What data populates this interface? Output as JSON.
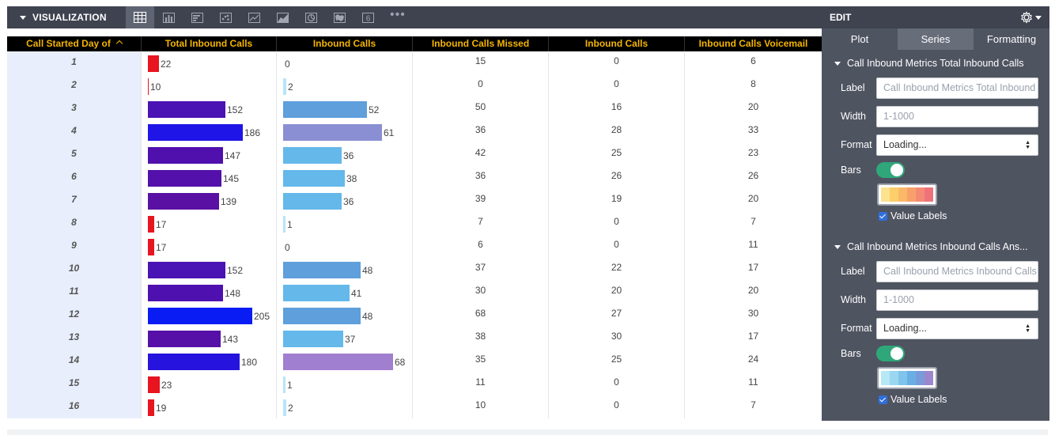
{
  "toolbar": {
    "title": "VISUALIZATION",
    "icons": [
      "table-icon",
      "bar-chart-icon",
      "column-chart-icon",
      "scatter-icon",
      "line-icon",
      "area-icon",
      "pie-icon",
      "map-icon",
      "single-value-icon"
    ],
    "single_value_digit": "6",
    "more": "•••"
  },
  "table": {
    "headers": [
      "Call Started Day of",
      "Total Inbound Calls",
      "Inbound Calls",
      "Inbound Calls Missed",
      "Inbound Calls",
      "Inbound Calls Voicemail"
    ],
    "rows": [
      {
        "day": "1",
        "total": 22,
        "total_color": "#e8141f",
        "inb": 0,
        "inb_color": "#b9e4f7",
        "missed": "15",
        "inb2": "0",
        "vm": "6"
      },
      {
        "day": "2",
        "total": 10,
        "total_color": "#e8141f",
        "inb": 2,
        "inb_color": "#b9e4f7",
        "missed": "0",
        "inb2": "0",
        "vm": "8"
      },
      {
        "day": "3",
        "total": 152,
        "total_color": "#4a13b3",
        "inb": 52,
        "inb_color": "#5e9fdc",
        "missed": "50",
        "inb2": "16",
        "vm": "20"
      },
      {
        "day": "4",
        "total": 186,
        "total_color": "#1f15e6",
        "inb": 61,
        "inb_color": "#8a8fd4",
        "missed": "36",
        "inb2": "28",
        "vm": "33"
      },
      {
        "day": "5",
        "total": 147,
        "total_color": "#5010ad",
        "inb": 36,
        "inb_color": "#64b8ea",
        "missed": "42",
        "inb2": "25",
        "vm": "23"
      },
      {
        "day": "6",
        "total": 145,
        "total_color": "#5310aa",
        "inb": 38,
        "inb_color": "#64b8ea",
        "missed": "36",
        "inb2": "26",
        "vm": "26"
      },
      {
        "day": "7",
        "total": 139,
        "total_color": "#5a10a2",
        "inb": 36,
        "inb_color": "#64b8ea",
        "missed": "39",
        "inb2": "19",
        "vm": "20"
      },
      {
        "day": "8",
        "total": 17,
        "total_color": "#e8141f",
        "inb": 1,
        "inb_color": "#b9e4f7",
        "missed": "7",
        "inb2": "0",
        "vm": "7"
      },
      {
        "day": "9",
        "total": 17,
        "total_color": "#e8141f",
        "inb": 0,
        "inb_color": "#b9e4f7",
        "missed": "6",
        "inb2": "0",
        "vm": "11"
      },
      {
        "day": "10",
        "total": 152,
        "total_color": "#4a13b3",
        "inb": 48,
        "inb_color": "#5e9fdc",
        "missed": "37",
        "inb2": "22",
        "vm": "17"
      },
      {
        "day": "11",
        "total": 148,
        "total_color": "#4e11b0",
        "inb": 41,
        "inb_color": "#64b8ea",
        "missed": "30",
        "inb2": "20",
        "vm": "20"
      },
      {
        "day": "12",
        "total": 205,
        "total_color": "#0a1cf4",
        "inb": 48,
        "inb_color": "#5e9fdc",
        "missed": "68",
        "inb2": "27",
        "vm": "30"
      },
      {
        "day": "13",
        "total": 143,
        "total_color": "#5610a7",
        "inb": 37,
        "inb_color": "#64b8ea",
        "missed": "38",
        "inb2": "30",
        "vm": "17"
      },
      {
        "day": "14",
        "total": 180,
        "total_color": "#2614de",
        "inb": 68,
        "inb_color": "#a17fd0",
        "missed": "35",
        "inb2": "25",
        "vm": "24"
      },
      {
        "day": "15",
        "total": 23,
        "total_color": "#e8141f",
        "inb": 1,
        "inb_color": "#b9e4f7",
        "missed": "11",
        "inb2": "0",
        "vm": "11"
      },
      {
        "day": "16",
        "total": 19,
        "total_color": "#e8141f",
        "inb": 2,
        "inb_color": "#b9e4f7",
        "missed": "10",
        "inb2": "0",
        "vm": "7"
      }
    ]
  },
  "edit_panel": {
    "title": "EDIT",
    "tabs": [
      "Plot",
      "Series",
      "Formatting"
    ],
    "active_tab": "Series",
    "sections": [
      {
        "title": "Call Inbound Metrics Total Inbound Calls",
        "label_label": "Label",
        "label_placeholder": "Call Inbound Metrics Total Inbound Calls",
        "width_label": "Width",
        "width_placeholder": "1-1000",
        "format_label": "Format",
        "format_value": "Loading...",
        "bars_label": "Bars",
        "bars_on": true,
        "palette": [
          "#fde28f",
          "#fccf6a",
          "#fbb968",
          "#f8a06a",
          "#f48a74",
          "#ef727b"
        ],
        "value_labels": "Value Labels"
      },
      {
        "title": "Call Inbound Metrics Inbound Calls Ans...",
        "label_label": "Label",
        "label_placeholder": "Call Inbound Metrics Inbound Calls Answered",
        "width_label": "Width",
        "width_placeholder": "1-1000",
        "format_label": "Format",
        "format_value": "Loading...",
        "bars_label": "Bars",
        "bars_on": true,
        "palette": [
          "#b7e8f5",
          "#9bd7f1",
          "#7fc4ec",
          "#6aafe3",
          "#7a9bd9",
          "#9c86cd"
        ],
        "value_labels": "Value Labels"
      }
    ]
  }
}
